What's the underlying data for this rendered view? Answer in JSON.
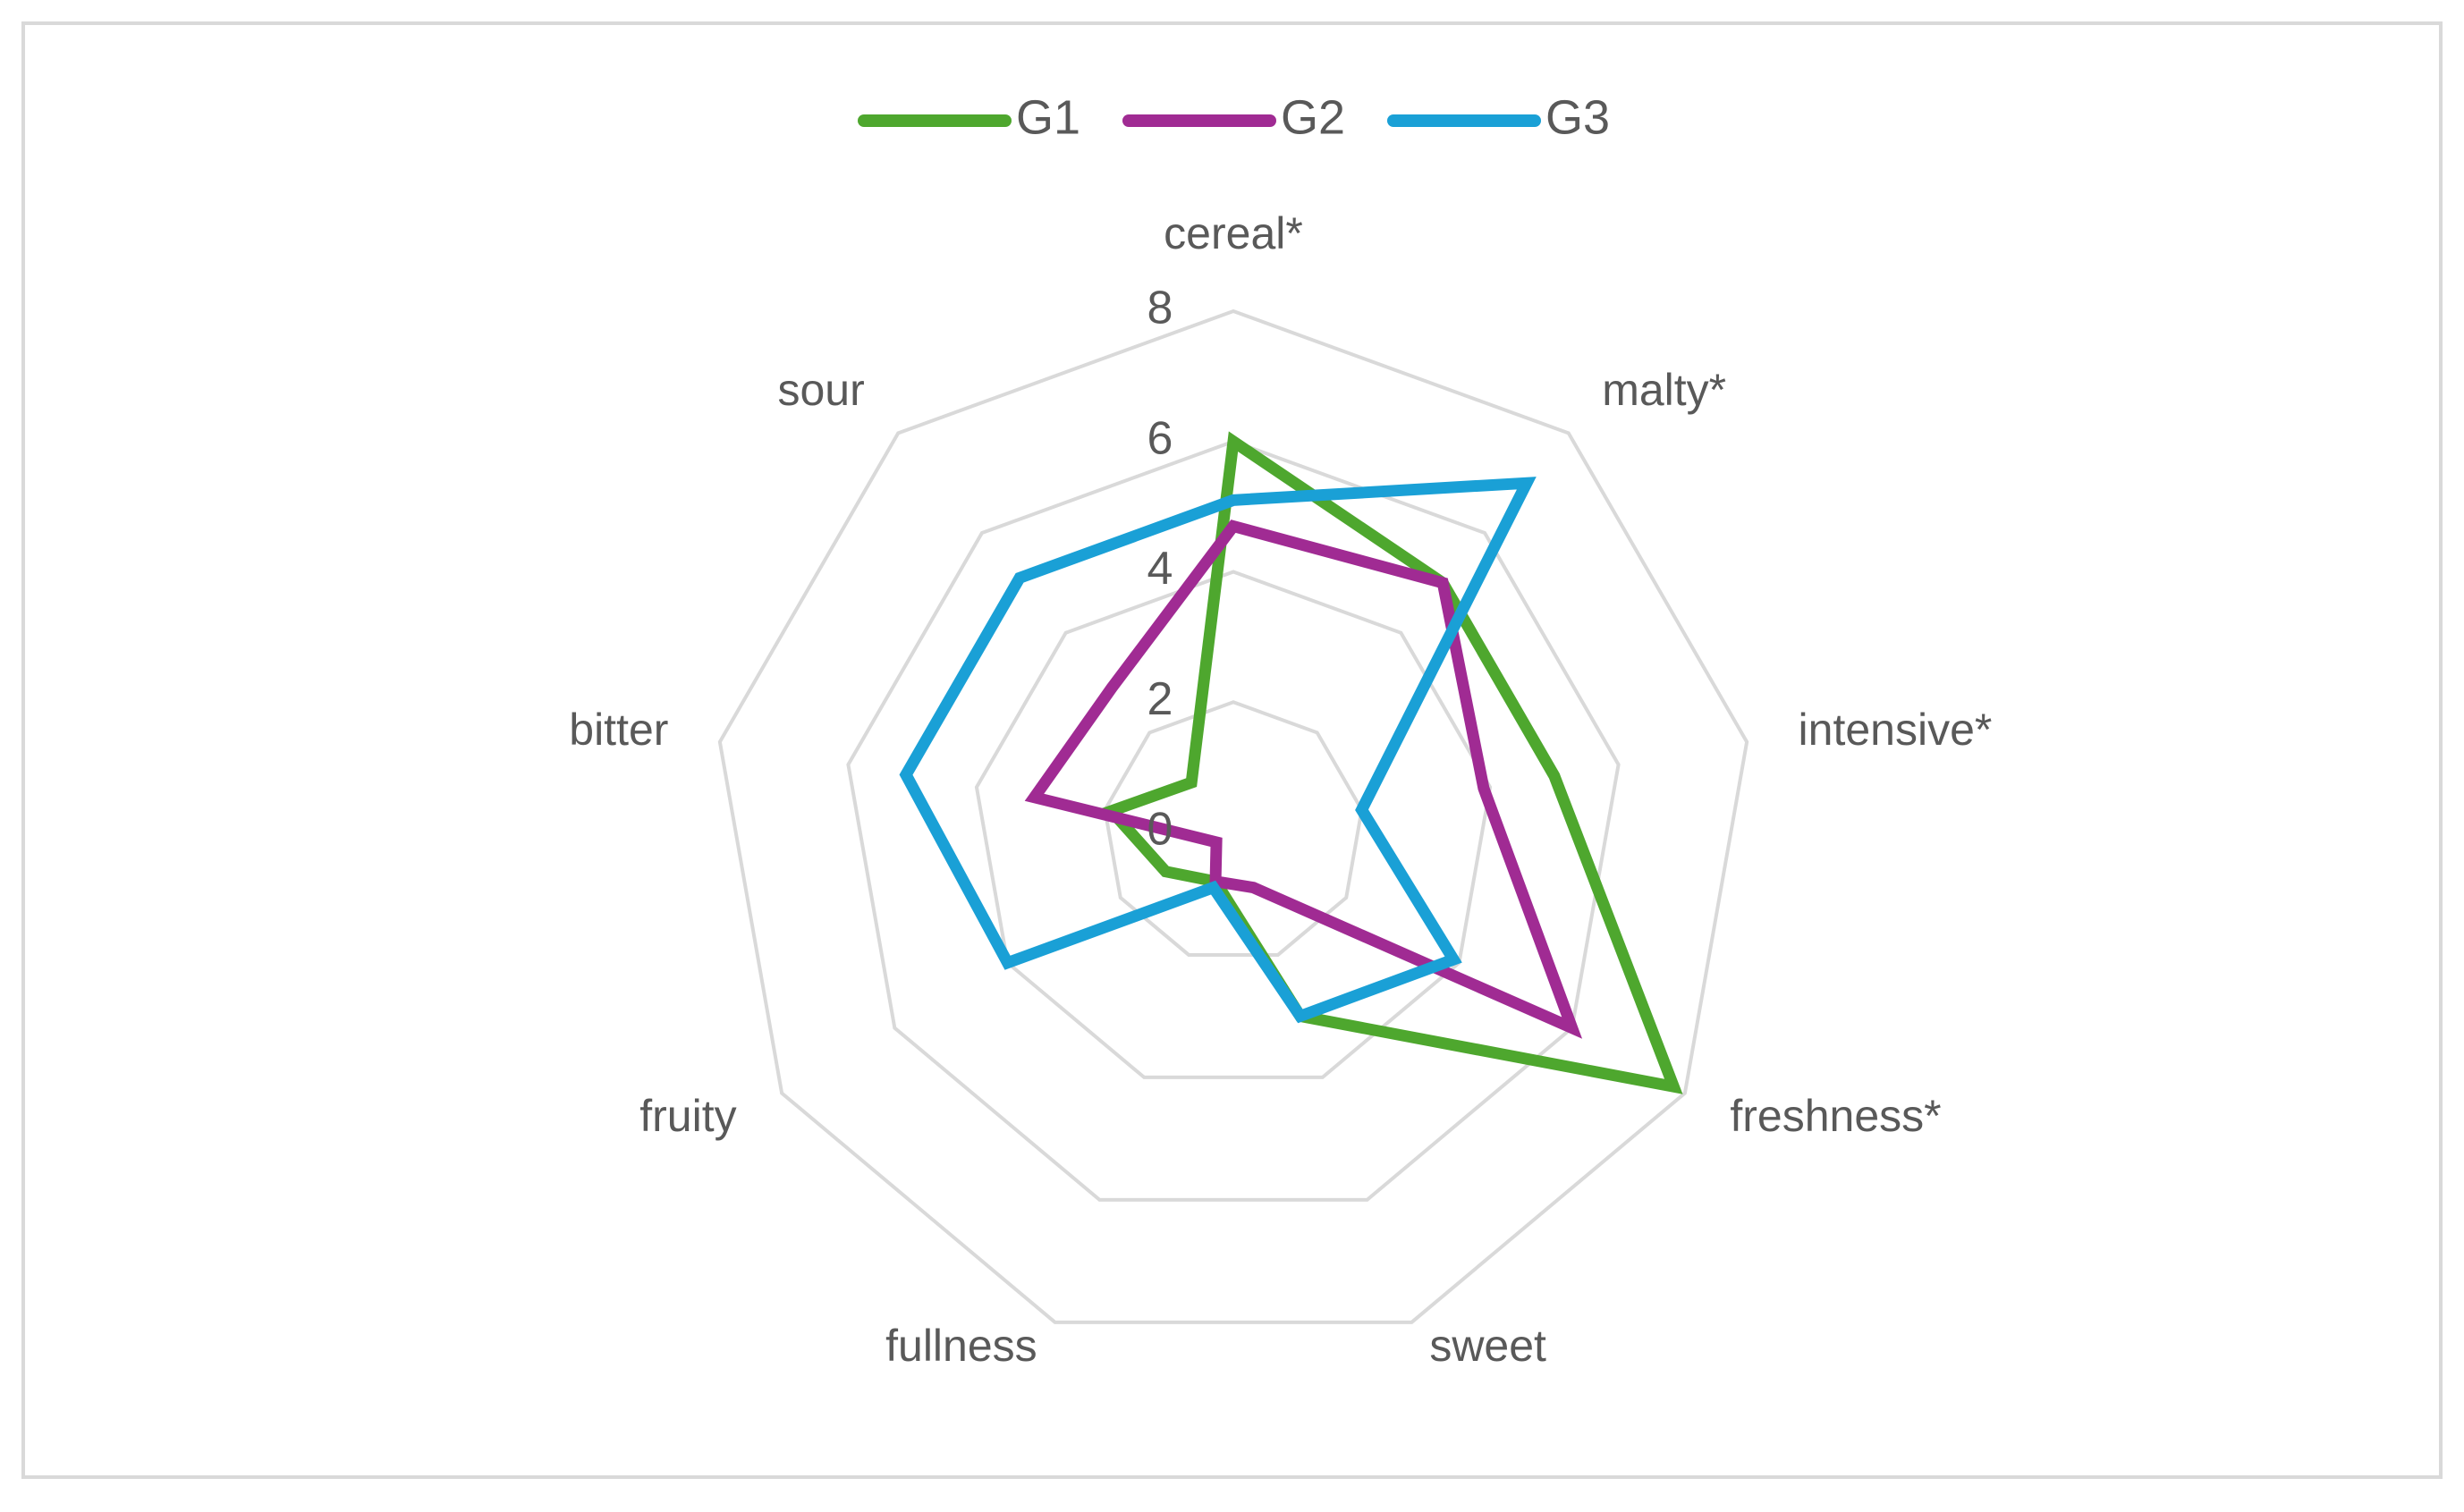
{
  "chart_data": {
    "type": "radar",
    "categories": [
      "cereal*",
      "malty*",
      "intensive*",
      "freshness*",
      "sweet",
      "fullness",
      "fruity",
      "bitter",
      "sour"
    ],
    "series": [
      {
        "name": "G1",
        "color": "#4ea72e",
        "values": [
          6.0,
          5.0,
          5.0,
          7.8,
          3.0,
          0.8,
          1.2,
          1.9,
          1.0
        ]
      },
      {
        "name": "G2",
        "color": "#a02b93",
        "values": [
          4.7,
          5.0,
          3.9,
          6.0,
          0.9,
          0.8,
          0.3,
          3.1,
          2.9
        ]
      },
      {
        "name": "G3",
        "color": "#1aa0d6",
        "values": [
          5.1,
          7.0,
          2.0,
          3.9,
          3.0,
          0.9,
          4.0,
          5.1,
          5.1
        ]
      }
    ],
    "ylim": [
      0,
      8
    ],
    "yticks": [
      0,
      2,
      4,
      6,
      8
    ],
    "grid": true,
    "legend": "top"
  }
}
